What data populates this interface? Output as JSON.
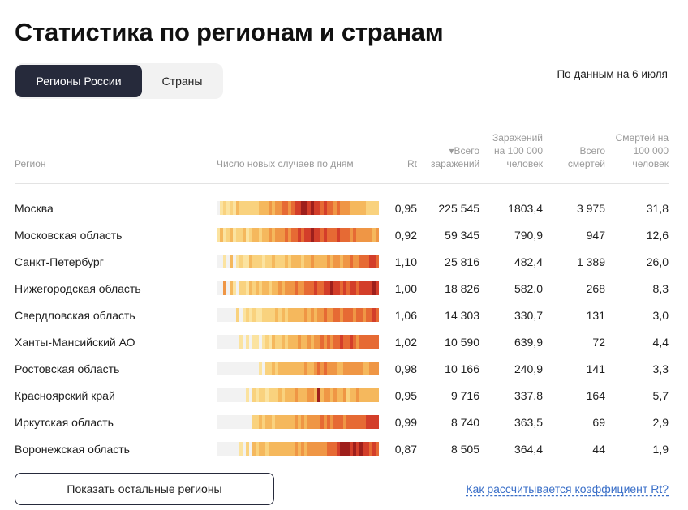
{
  "title": "Статистика по регионам и странам",
  "tabs": [
    {
      "label": "Регионы России",
      "active": true
    },
    {
      "label": "Страны",
      "active": false
    }
  ],
  "as_of": "По данным на 6 июля",
  "columns": {
    "region": "Регион",
    "trend": "Число новых случаев по дням",
    "rt": "Rt",
    "cases": "▾Всего заражений",
    "cases_per_100k": "Заражений на 100 000 человек",
    "deaths": "Всего смертей",
    "deaths_per_100k": "Смертей на 100 000 человек"
  },
  "heat_colors": [
    "#f2f2f2",
    "#fbe3a0",
    "#f9d27e",
    "#f5b85d",
    "#ef9645",
    "#e66a34",
    "#d33e2a",
    "#9e1f1c"
  ],
  "rows": [
    {
      "region": "Москва",
      "rt": "0,95",
      "cases": "225 545",
      "cases_per_100k": "1803,4",
      "deaths": "3 975",
      "deaths_per_100k": "31,8",
      "heat": [
        0,
        1,
        2,
        1,
        2,
        1,
        3,
        2,
        2,
        2,
        2,
        2,
        2,
        3,
        3,
        3,
        4,
        3,
        4,
        4,
        5,
        5,
        4,
        5,
        6,
        6,
        7,
        7,
        6,
        7,
        6,
        6,
        5,
        6,
        5,
        5,
        4,
        5,
        4,
        4,
        4,
        3,
        3,
        3,
        3,
        3,
        2,
        2,
        2,
        2
      ]
    },
    {
      "region": "Московская область",
      "rt": "0,92",
      "cases": "59 345",
      "cases_per_100k": "790,9",
      "deaths": "947",
      "deaths_per_100k": "12,6",
      "heat": [
        1,
        3,
        1,
        2,
        3,
        1,
        2,
        2,
        3,
        1,
        2,
        3,
        3,
        2,
        3,
        3,
        4,
        3,
        4,
        4,
        4,
        5,
        4,
        5,
        5,
        6,
        5,
        6,
        6,
        7,
        6,
        6,
        5,
        6,
        5,
        5,
        5,
        6,
        5,
        5,
        5,
        4,
        5,
        4,
        4,
        4,
        4,
        4,
        3,
        4
      ]
    },
    {
      "region": "Санкт-Петербург",
      "rt": "1,10",
      "cases": "25 816",
      "cases_per_100k": "482,4",
      "deaths": "1 389",
      "deaths_per_100k": "26,0",
      "heat": [
        0,
        0,
        1,
        0,
        3,
        0,
        1,
        2,
        1,
        1,
        3,
        2,
        2,
        2,
        1,
        2,
        2,
        3,
        2,
        2,
        2,
        3,
        2,
        3,
        3,
        3,
        2,
        3,
        3,
        4,
        3,
        3,
        3,
        3,
        4,
        3,
        4,
        4,
        3,
        4,
        4,
        5,
        4,
        4,
        5,
        5,
        5,
        6,
        6,
        5
      ]
    },
    {
      "region": "Нижегородская область",
      "rt": "1,00",
      "cases": "18 826",
      "cases_per_100k": "582,0",
      "deaths": "268",
      "deaths_per_100k": "8,3",
      "heat": [
        0,
        0,
        4,
        0,
        3,
        1,
        0,
        2,
        2,
        1,
        3,
        2,
        3,
        2,
        3,
        3,
        2,
        3,
        3,
        4,
        3,
        4,
        4,
        4,
        5,
        4,
        4,
        5,
        5,
        5,
        6,
        5,
        5,
        6,
        6,
        7,
        6,
        6,
        5,
        6,
        5,
        6,
        6,
        5,
        6,
        6,
        6,
        6,
        7,
        6
      ]
    },
    {
      "region": "Свердловская область",
      "rt": "1,06",
      "cases": "14 303",
      "cases_per_100k": "330,7",
      "deaths": "131",
      "deaths_per_100k": "3,0",
      "heat": [
        0,
        0,
        0,
        0,
        0,
        0,
        2,
        0,
        1,
        2,
        1,
        2,
        1,
        1,
        2,
        2,
        2,
        2,
        3,
        2,
        3,
        2,
        3,
        3,
        3,
        3,
        3,
        4,
        3,
        4,
        3,
        4,
        4,
        5,
        4,
        4,
        5,
        5,
        4,
        5,
        5,
        5,
        4,
        5,
        5,
        4,
        5,
        5,
        6,
        5
      ]
    },
    {
      "region": "Ханты-Мансийский АО",
      "rt": "1,02",
      "cases": "10 590",
      "cases_per_100k": "639,9",
      "deaths": "72",
      "deaths_per_100k": "4,4",
      "heat": [
        0,
        0,
        0,
        0,
        0,
        0,
        0,
        1,
        0,
        1,
        0,
        1,
        1,
        0,
        1,
        2,
        1,
        3,
        2,
        2,
        3,
        2,
        3,
        3,
        3,
        4,
        3,
        3,
        4,
        3,
        4,
        4,
        5,
        4,
        5,
        4,
        5,
        5,
        6,
        5,
        5,
        6,
        5,
        4,
        5,
        5,
        5,
        5,
        5,
        5
      ]
    },
    {
      "region": "Ростовская область",
      "rt": "0,98",
      "cases": "10 166",
      "cases_per_100k": "240,9",
      "deaths": "141",
      "deaths_per_100k": "3,3",
      "heat": [
        0,
        0,
        0,
        0,
        0,
        0,
        0,
        0,
        0,
        0,
        0,
        0,
        0,
        1,
        0,
        2,
        2,
        3,
        2,
        3,
        3,
        3,
        3,
        3,
        3,
        3,
        3,
        4,
        3,
        3,
        4,
        5,
        4,
        5,
        4,
        4,
        4,
        3,
        3,
        4,
        4,
        4,
        4,
        4,
        4,
        3,
        3,
        4,
        4,
        4
      ]
    },
    {
      "region": "Красноярский край",
      "rt": "0,95",
      "cases": "9 716",
      "cases_per_100k": "337,8",
      "deaths": "164",
      "deaths_per_100k": "5,7",
      "heat": [
        0,
        0,
        0,
        0,
        0,
        0,
        0,
        0,
        0,
        1,
        0,
        2,
        1,
        2,
        2,
        1,
        2,
        2,
        2,
        3,
        2,
        3,
        3,
        3,
        4,
        3,
        3,
        3,
        4,
        4,
        3,
        7,
        3,
        4,
        4,
        3,
        4,
        3,
        3,
        4,
        2,
        3,
        3,
        4,
        3,
        3,
        3,
        3,
        3,
        3
      ]
    },
    {
      "region": "Иркутская область",
      "rt": "0,99",
      "cases": "8 740",
      "cases_per_100k": "363,5",
      "deaths": "69",
      "deaths_per_100k": "2,9",
      "heat": [
        0,
        0,
        0,
        0,
        0,
        0,
        0,
        0,
        0,
        0,
        0,
        2,
        2,
        3,
        2,
        3,
        3,
        2,
        3,
        3,
        3,
        3,
        3,
        3,
        4,
        3,
        4,
        3,
        4,
        4,
        4,
        4,
        5,
        4,
        5,
        4,
        5,
        5,
        5,
        4,
        5,
        5,
        5,
        5,
        5,
        5,
        6,
        6,
        6,
        6
      ]
    },
    {
      "region": "Воронежская область",
      "rt": "0,87",
      "cases": "8 505",
      "cases_per_100k": "364,4",
      "deaths": "44",
      "deaths_per_100k": "1,9",
      "heat": [
        0,
        0,
        0,
        0,
        0,
        0,
        0,
        1,
        0,
        2,
        0,
        3,
        2,
        3,
        3,
        2,
        3,
        3,
        3,
        3,
        3,
        3,
        3,
        3,
        4,
        3,
        4,
        3,
        4,
        4,
        4,
        4,
        4,
        4,
        5,
        5,
        5,
        6,
        7,
        7,
        7,
        6,
        7,
        6,
        7,
        6,
        6,
        5,
        6,
        5
      ]
    }
  ],
  "show_more": "Показать остальные регионы",
  "rt_link": "Как рассчитывается коэффициент Rt?"
}
